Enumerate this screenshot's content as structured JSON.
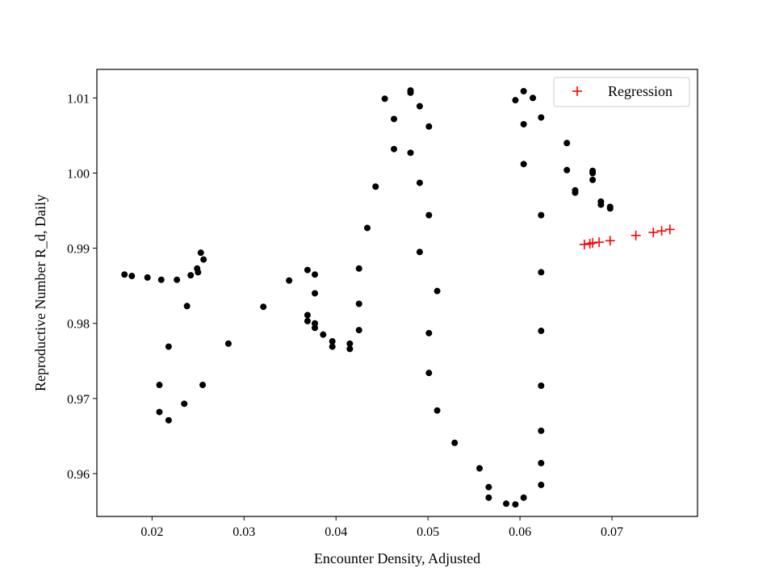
{
  "chart_data": {
    "type": "scatter",
    "xlabel": "Encounter Density, Adjusted",
    "ylabel": "Reproductive Number R_d, Daily",
    "xlim": [
      0.014,
      0.0793
    ],
    "ylim": [
      0.9543,
      1.0138
    ],
    "xticks": [
      0.02,
      0.03,
      0.04,
      0.05,
      0.06,
      0.07
    ],
    "xtick_labels": [
      "0.02",
      "0.03",
      "0.04",
      "0.05",
      "0.06",
      "0.07"
    ],
    "yticks": [
      0.96,
      0.97,
      0.98,
      0.99,
      1.0,
      1.01
    ],
    "ytick_labels": [
      "0.96",
      "0.97",
      "0.98",
      "0.99",
      "1.00",
      "1.01"
    ],
    "grid": false,
    "legend_position": "top-right",
    "series": [
      {
        "marker": "dot",
        "color": "#000000",
        "points": [
          [
            0.017,
            0.9865
          ],
          [
            0.0178,
            0.9863
          ],
          [
            0.0195,
            0.9861
          ],
          [
            0.021,
            0.9858
          ],
          [
            0.0227,
            0.9858
          ],
          [
            0.0242,
            0.9864
          ],
          [
            0.0249,
            0.9873
          ],
          [
            0.025,
            0.9868
          ],
          [
            0.0253,
            0.9894
          ],
          [
            0.0256,
            0.9885
          ],
          [
            0.0238,
            0.9823
          ],
          [
            0.0218,
            0.9769
          ],
          [
            0.0208,
            0.9718
          ],
          [
            0.0208,
            0.9682
          ],
          [
            0.0218,
            0.9671
          ],
          [
            0.0235,
            0.9693
          ],
          [
            0.0255,
            0.9718
          ],
          [
            0.0283,
            0.9773
          ],
          [
            0.0321,
            0.9822
          ],
          [
            0.0349,
            0.9857
          ],
          [
            0.0369,
            0.9871
          ],
          [
            0.0377,
            0.9865
          ],
          [
            0.0377,
            0.984
          ],
          [
            0.0369,
            0.9811
          ],
          [
            0.0369,
            0.9803
          ],
          [
            0.0377,
            0.98
          ],
          [
            0.0377,
            0.9794
          ],
          [
            0.0386,
            0.9785
          ],
          [
            0.0396,
            0.9776
          ],
          [
            0.0396,
            0.9769
          ],
          [
            0.0415,
            0.9773
          ],
          [
            0.0415,
            0.9766
          ],
          [
            0.0425,
            0.9791
          ],
          [
            0.0425,
            0.9826
          ],
          [
            0.0425,
            0.9873
          ],
          [
            0.0434,
            0.9927
          ],
          [
            0.0443,
            0.9982
          ],
          [
            0.0453,
            1.0099
          ],
          [
            0.0463,
            1.0072
          ],
          [
            0.0463,
            1.0032
          ],
          [
            0.0481,
            1.011
          ],
          [
            0.0481,
            1.0107
          ],
          [
            0.0481,
            1.0027
          ],
          [
            0.0491,
            1.0089
          ],
          [
            0.0491,
            0.9987
          ],
          [
            0.0491,
            0.9895
          ],
          [
            0.0501,
            1.0062
          ],
          [
            0.0501,
            0.9944
          ],
          [
            0.0501,
            0.9787
          ],
          [
            0.0501,
            0.9734
          ],
          [
            0.051,
            0.9843
          ],
          [
            0.051,
            0.9684
          ],
          [
            0.0529,
            0.9641
          ],
          [
            0.0556,
            0.9607
          ],
          [
            0.0566,
            0.9582
          ],
          [
            0.0566,
            0.9568
          ],
          [
            0.0585,
            0.956
          ],
          [
            0.0595,
            0.9559
          ],
          [
            0.0604,
            0.9568
          ],
          [
            0.0595,
            1.0097
          ],
          [
            0.0604,
            1.0109
          ],
          [
            0.0604,
            1.0065
          ],
          [
            0.0604,
            1.0012
          ],
          [
            0.0614,
            1.01
          ],
          [
            0.0623,
            1.0074
          ],
          [
            0.0623,
            0.9944
          ],
          [
            0.0623,
            0.9868
          ],
          [
            0.0623,
            0.979
          ],
          [
            0.0623,
            0.9717
          ],
          [
            0.0623,
            0.9657
          ],
          [
            0.0623,
            0.9614
          ],
          [
            0.0623,
            0.9585
          ],
          [
            0.0651,
            1.004
          ],
          [
            0.0651,
            1.0004
          ],
          [
            0.066,
            0.9977
          ],
          [
            0.066,
            0.9974
          ],
          [
            0.0679,
            1.0003
          ],
          [
            0.0679,
            1.0
          ],
          [
            0.0679,
            0.9991
          ],
          [
            0.0688,
            0.9962
          ],
          [
            0.0688,
            0.9958
          ],
          [
            0.0698,
            0.9955
          ],
          [
            0.0698,
            0.9953
          ]
        ]
      },
      {
        "name": "Regression",
        "marker": "plus",
        "color": "#ff0000",
        "points": [
          [
            0.067,
            0.9905
          ],
          [
            0.0676,
            0.9906
          ],
          [
            0.0679,
            0.9907
          ],
          [
            0.0686,
            0.9908
          ],
          [
            0.0698,
            0.991
          ],
          [
            0.0726,
            0.9917
          ],
          [
            0.0745,
            0.9921
          ],
          [
            0.0754,
            0.9923
          ],
          [
            0.0763,
            0.9925
          ]
        ]
      }
    ]
  }
}
